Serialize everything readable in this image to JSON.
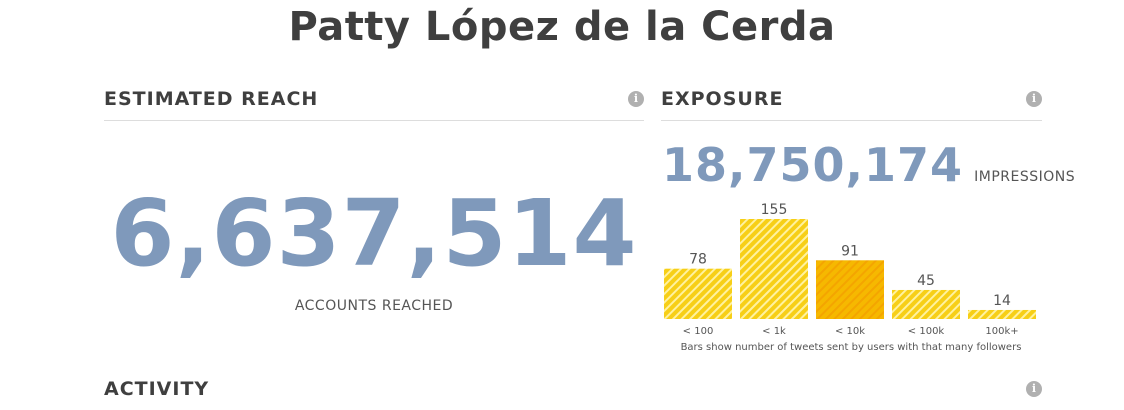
{
  "page": {
    "title": "Patty López de la Cerda"
  },
  "estimated_reach": {
    "heading": "ESTIMATED REACH",
    "info_icon": "info-icon",
    "value": "6,637,514",
    "label": "ACCOUNTS REACHED"
  },
  "exposure": {
    "heading": "EXPOSURE",
    "info_icon": "info-icon",
    "impressions_value": "18,750,174",
    "impressions_label": "IMPRESSIONS",
    "caption": "Bars show number of tweets sent by users with that many followers",
    "colors": {
      "bar": "#f7cf17",
      "bar_dark": "#f2b705",
      "stripe": "#fff2a0",
      "highlight": "#f4a500"
    }
  },
  "activity": {
    "heading": "ACTIVITY",
    "info_icon": "info-icon"
  },
  "chart_data": {
    "type": "bar",
    "categories": [
      "< 100",
      "< 1k",
      "< 10k",
      "< 100k",
      "100k+"
    ],
    "values": [
      78,
      155,
      91,
      45,
      14
    ],
    "data_labels": [
      "78",
      "155",
      "91",
      "45",
      "14"
    ],
    "title": "",
    "xlabel": "",
    "ylabel": "",
    "ylim": [
      0,
      155
    ],
    "grid": false,
    "highlighted_category": "< 10k"
  }
}
